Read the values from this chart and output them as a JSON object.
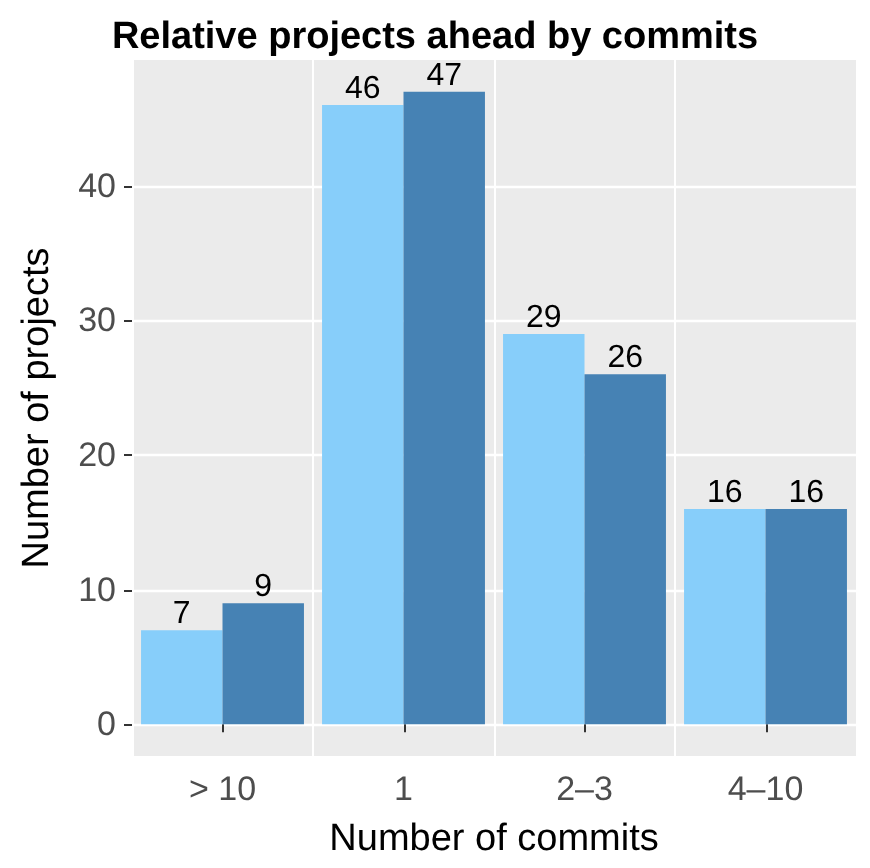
{
  "chart_data": {
    "type": "bar",
    "title": "Relative projects ahead by commits",
    "xlabel": "Number of commits",
    "ylabel": "Number of projects",
    "categories": [
      "> 10",
      "1",
      "2–3",
      "4–10"
    ],
    "series": [
      {
        "color": "#87cefa",
        "values": [
          7,
          46,
          29,
          16
        ]
      },
      {
        "color": "#4682b4",
        "values": [
          9,
          47,
          26,
          16
        ]
      }
    ],
    "ylim": [
      -2.35,
      49.35
    ],
    "yticks": [
      0,
      10,
      20,
      30,
      40
    ],
    "grid": true,
    "data_labels": true
  }
}
